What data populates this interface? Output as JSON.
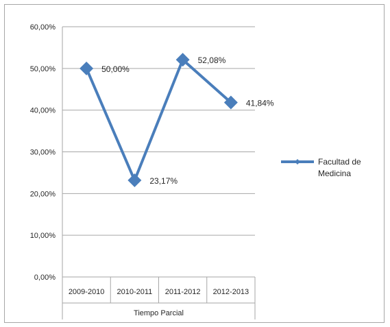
{
  "chart_data": {
    "type": "line",
    "title": "",
    "xlabel": "Tiempo Parcial",
    "ylabel": "",
    "categories": [
      "2009-2010",
      "2010-2011",
      "2011-2012",
      "2012-2013"
    ],
    "series": [
      {
        "name": "Facultad de Medicina",
        "values": [
          50.0,
          23.17,
          52.08,
          41.84
        ],
        "color": "#4a7ebb"
      }
    ],
    "data_labels": [
      "50,00%",
      "23,17%",
      "52,08%",
      "41,84%"
    ],
    "ylim": [
      0,
      60
    ],
    "y_ticks": [
      0,
      10,
      20,
      30,
      40,
      50,
      60
    ],
    "y_tick_labels": [
      "0,00%",
      "10,00%",
      "20,00%",
      "30,00%",
      "40,00%",
      "50,00%",
      "60,00%"
    ],
    "grid": true,
    "legend_position": "right",
    "marker": "diamond"
  }
}
